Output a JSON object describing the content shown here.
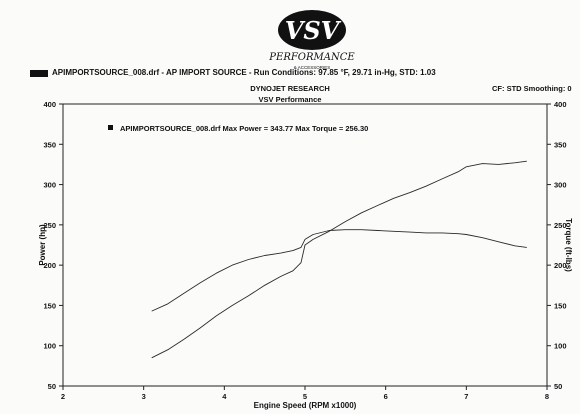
{
  "header": {
    "logo_text": "VSV",
    "logo_subtext": "PERFORMANCE",
    "logo_tagline": "& ACCESSORIES",
    "run_line": "APIMPORTSOURCE_008.drf - AP IMPORT SOURCE  -  Run Conditions: 97.85 °F, 29.71 in-Hg, STD: 1.03",
    "title_line1": "DYNOJET RESEARCH",
    "title_line2": "VSV Performance",
    "cf_line": "CF: STD  Smoothing: 0"
  },
  "colors": {
    "line": "#2b2b2b",
    "background": "#fbfbfa",
    "grid": "#d8d8d8"
  },
  "chart_data": {
    "type": "line",
    "legend_text": "APIMPORTSOURCE_008.drf Max Power = 343.77     Max Torque = 256.30",
    "legend_position": "top-left",
    "xlabel": "Engine Speed (RPM x1000)",
    "ylabel_left": "Power (hp)",
    "ylabel_right": "Torque (ft-lbs)",
    "xlim": [
      2,
      8
    ],
    "ylim": [
      50,
      400
    ],
    "x_ticks": [
      2,
      3,
      4,
      5,
      6,
      7,
      8
    ],
    "y_ticks": [
      50,
      100,
      150,
      200,
      250,
      300,
      350,
      400
    ],
    "grid": false,
    "series": [
      {
        "name": "Power (hp)",
        "x": [
          3.1,
          3.3,
          3.5,
          3.7,
          3.9,
          4.1,
          4.3,
          4.5,
          4.7,
          4.85,
          4.95,
          5.0,
          5.1,
          5.3,
          5.5,
          5.7,
          5.9,
          6.1,
          6.3,
          6.5,
          6.7,
          6.9,
          7.0,
          7.2,
          7.4,
          7.6,
          7.75
        ],
        "values": [
          85,
          95,
          108,
          122,
          137,
          150,
          162,
          175,
          186,
          193,
          203,
          225,
          232,
          242,
          254,
          265,
          274,
          283,
          290,
          298,
          307,
          316,
          322,
          326,
          325,
          327,
          329
        ]
      },
      {
        "name": "Torque (ft-lbs)",
        "x": [
          3.1,
          3.3,
          3.5,
          3.7,
          3.9,
          4.1,
          4.3,
          4.5,
          4.7,
          4.85,
          4.95,
          5.0,
          5.1,
          5.3,
          5.5,
          5.7,
          5.9,
          6.1,
          6.3,
          6.5,
          6.7,
          6.9,
          7.0,
          7.2,
          7.4,
          7.6,
          7.75
        ],
        "values": [
          143,
          152,
          165,
          178,
          190,
          200,
          207,
          212,
          215,
          218,
          222,
          232,
          238,
          243,
          244,
          244,
          243,
          242,
          241,
          240,
          240,
          239,
          238,
          234,
          229,
          224,
          222
        ]
      }
    ]
  }
}
